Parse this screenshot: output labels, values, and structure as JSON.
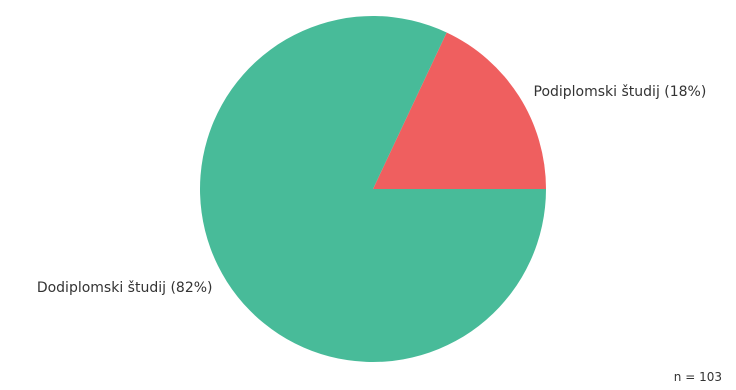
{
  "chart_data": {
    "type": "pie",
    "slices": [
      {
        "label": "Podiplomski študij (18%)",
        "value": 18,
        "color": "#EF5F5F"
      },
      {
        "label": "Dodiplomski študij (82%)",
        "value": 82,
        "color": "#48BB99"
      }
    ],
    "n_text": "n = 103",
    "legend": "none"
  }
}
